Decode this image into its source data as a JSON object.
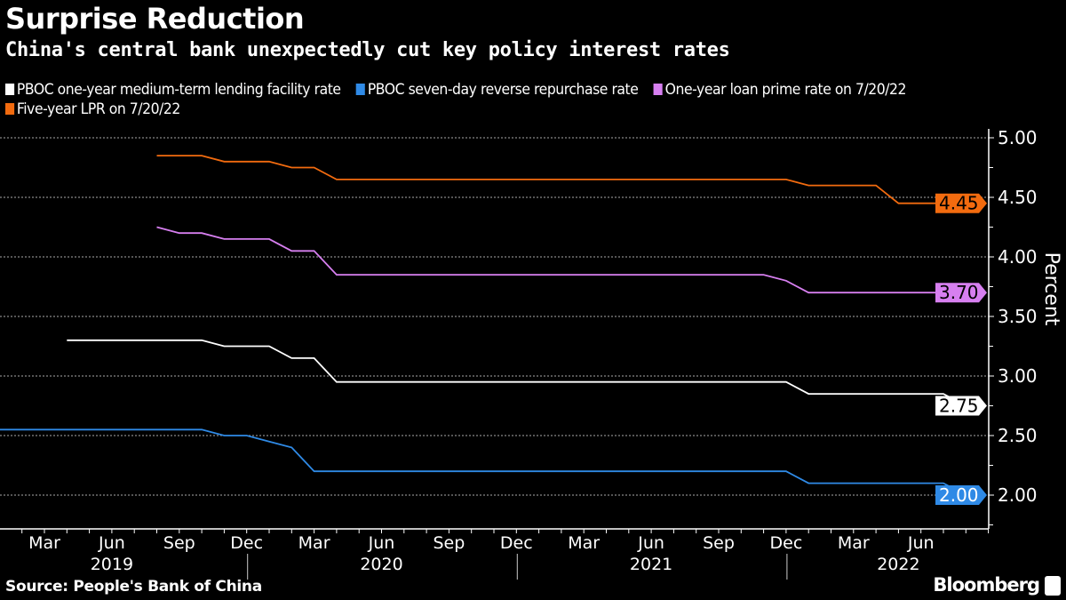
{
  "header": {
    "title": "Surprise Reduction",
    "subtitle": "China's central bank unexpectedly cut key policy interest rates"
  },
  "footer": {
    "source": "Source: People's Bank of China",
    "brand": "Bloomberg"
  },
  "chart_data": {
    "type": "line",
    "title": "Surprise Reduction",
    "subtitle": "China's central bank unexpectedly cut key policy interest rates",
    "ylabel": "Percent",
    "xlabel": "",
    "ylim": [
      1.75,
      5.1
    ],
    "xlim": [
      "2019-01",
      "2022-09"
    ],
    "y_ticks": [
      "5.00",
      "4.50",
      "4.00",
      "3.50",
      "3.00",
      "2.50",
      "2.00"
    ],
    "y_tick_values": [
      5.0,
      4.5,
      4.0,
      3.5,
      3.0,
      2.5,
      2.0
    ],
    "x_month_ticks": [
      {
        "date": "2019-03",
        "label": "Mar"
      },
      {
        "date": "2019-06",
        "label": "Jun"
      },
      {
        "date": "2019-09",
        "label": "Sep"
      },
      {
        "date": "2019-12",
        "label": "Dec"
      },
      {
        "date": "2020-03",
        "label": "Mar"
      },
      {
        "date": "2020-06",
        "label": "Jun"
      },
      {
        "date": "2020-09",
        "label": "Sep"
      },
      {
        "date": "2020-12",
        "label": "Dec"
      },
      {
        "date": "2021-03",
        "label": "Mar"
      },
      {
        "date": "2021-06",
        "label": "Jun"
      },
      {
        "date": "2021-09",
        "label": "Sep"
      },
      {
        "date": "2021-12",
        "label": "Dec"
      },
      {
        "date": "2022-03",
        "label": "Mar"
      },
      {
        "date": "2022-06",
        "label": "Jun"
      }
    ],
    "x_year_labels": [
      {
        "date": "2019-06",
        "label": "2019"
      },
      {
        "date": "2020-06",
        "label": "2020"
      },
      {
        "date": "2021-06",
        "label": "2021"
      },
      {
        "date": "2022-05",
        "label": "2022"
      }
    ],
    "grid": "horizontal dotted",
    "legend_position": "top",
    "axis_side": "right",
    "series": [
      {
        "name": "PBOC one-year medium-term lending facility rate",
        "color": "#ffffff",
        "end_label": "2.75",
        "points": [
          [
            "2019-04",
            3.3
          ],
          [
            "2019-05",
            3.3
          ],
          [
            "2019-06",
            3.3
          ],
          [
            "2019-07",
            3.3
          ],
          [
            "2019-08",
            3.3
          ],
          [
            "2019-09",
            3.3
          ],
          [
            "2019-10",
            3.3
          ],
          [
            "2019-11",
            3.25
          ],
          [
            "2019-12",
            3.25
          ],
          [
            "2020-01",
            3.25
          ],
          [
            "2020-02",
            3.15
          ],
          [
            "2020-03",
            3.15
          ],
          [
            "2020-04",
            2.95
          ],
          [
            "2021-12",
            2.95
          ],
          [
            "2022-01",
            2.85
          ],
          [
            "2022-07",
            2.85
          ],
          [
            "2022-08",
            2.75
          ]
        ]
      },
      {
        "name": "PBOC seven-day reverse repurchase rate",
        "color": "#2f8ae6",
        "end_label": "2.00",
        "points": [
          [
            "2019-01",
            2.55
          ],
          [
            "2019-10",
            2.55
          ],
          [
            "2019-11",
            2.5
          ],
          [
            "2019-12",
            2.5
          ],
          [
            "2020-01",
            2.45
          ],
          [
            "2020-02",
            2.4
          ],
          [
            "2020-03",
            2.2
          ],
          [
            "2021-12",
            2.2
          ],
          [
            "2022-01",
            2.1
          ],
          [
            "2022-07",
            2.1
          ],
          [
            "2022-08",
            2.0
          ]
        ]
      },
      {
        "name": "One-year loan prime rate on 7/20/22",
        "color": "#d77ff0",
        "end_label": "3.70",
        "points": [
          [
            "2019-08",
            4.25
          ],
          [
            "2019-09",
            4.2
          ],
          [
            "2019-10",
            4.2
          ],
          [
            "2019-11",
            4.15
          ],
          [
            "2019-12",
            4.15
          ],
          [
            "2020-01",
            4.15
          ],
          [
            "2020-02",
            4.05
          ],
          [
            "2020-03",
            4.05
          ],
          [
            "2020-04",
            3.85
          ],
          [
            "2021-11",
            3.85
          ],
          [
            "2021-12",
            3.8
          ],
          [
            "2022-01",
            3.7
          ],
          [
            "2022-07",
            3.7
          ]
        ]
      },
      {
        "name": "Five-year LPR on 7/20/22",
        "color": "#f26b0f",
        "end_label": "4.45",
        "points": [
          [
            "2019-08",
            4.85
          ],
          [
            "2019-09",
            4.85
          ],
          [
            "2019-10",
            4.85
          ],
          [
            "2019-11",
            4.8
          ],
          [
            "2019-12",
            4.8
          ],
          [
            "2020-01",
            4.8
          ],
          [
            "2020-02",
            4.75
          ],
          [
            "2020-03",
            4.75
          ],
          [
            "2020-04",
            4.65
          ],
          [
            "2021-12",
            4.65
          ],
          [
            "2022-01",
            4.6
          ],
          [
            "2022-04",
            4.6
          ],
          [
            "2022-05",
            4.45
          ],
          [
            "2022-07",
            4.45
          ]
        ]
      }
    ]
  }
}
